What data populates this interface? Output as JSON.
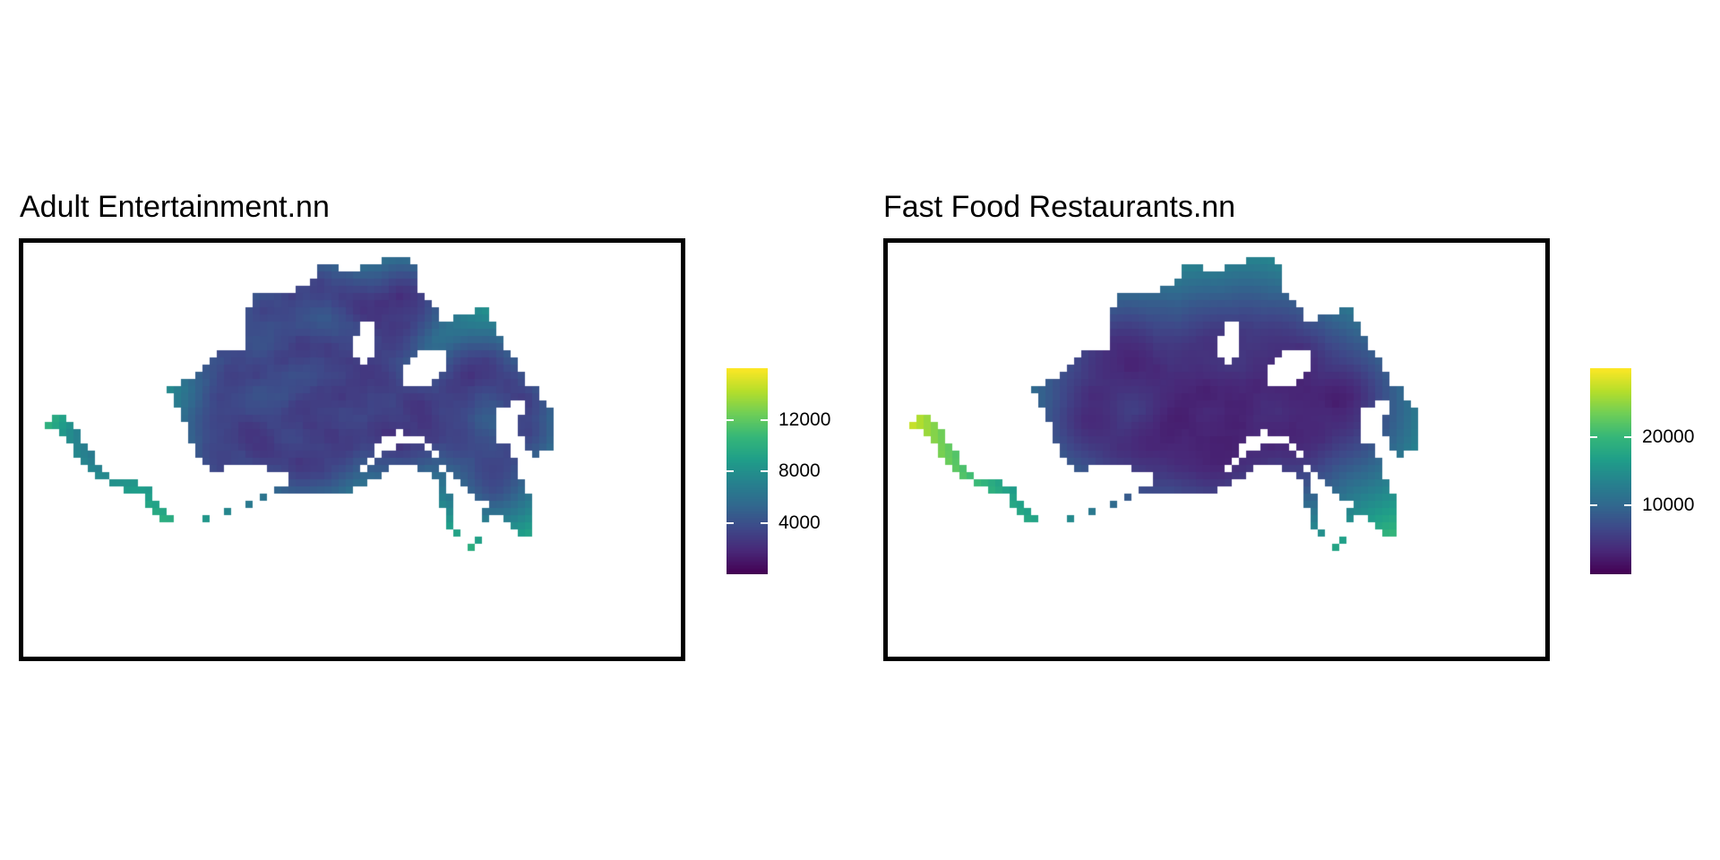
{
  "maps": [
    {
      "id": "adult",
      "title": "Adult Entertainment.nn",
      "legend": {
        "min": 0,
        "max": 16000,
        "ticks": [
          {
            "value": 4000,
            "label": "4000"
          },
          {
            "value": 8000,
            "label": "8000"
          },
          {
            "value": 12000,
            "label": "12000"
          }
        ],
        "palette": "viridis"
      }
    },
    {
      "id": "fastfood",
      "title": "Fast Food Restaurants.nn",
      "legend": {
        "min": 0,
        "max": 30000,
        "ticks": [
          {
            "value": 10000,
            "label": "10000"
          },
          {
            "value": 20000,
            "label": "20000"
          }
        ],
        "palette": "viridis"
      }
    }
  ],
  "colors": {
    "frame": "#000000",
    "background": "#ffffff",
    "viridis": [
      "#440154",
      "#482878",
      "#3e4989",
      "#31688e",
      "#26828e",
      "#1f9e89",
      "#35b779",
      "#6ece58",
      "#b5de2b",
      "#fde725"
    ]
  }
}
